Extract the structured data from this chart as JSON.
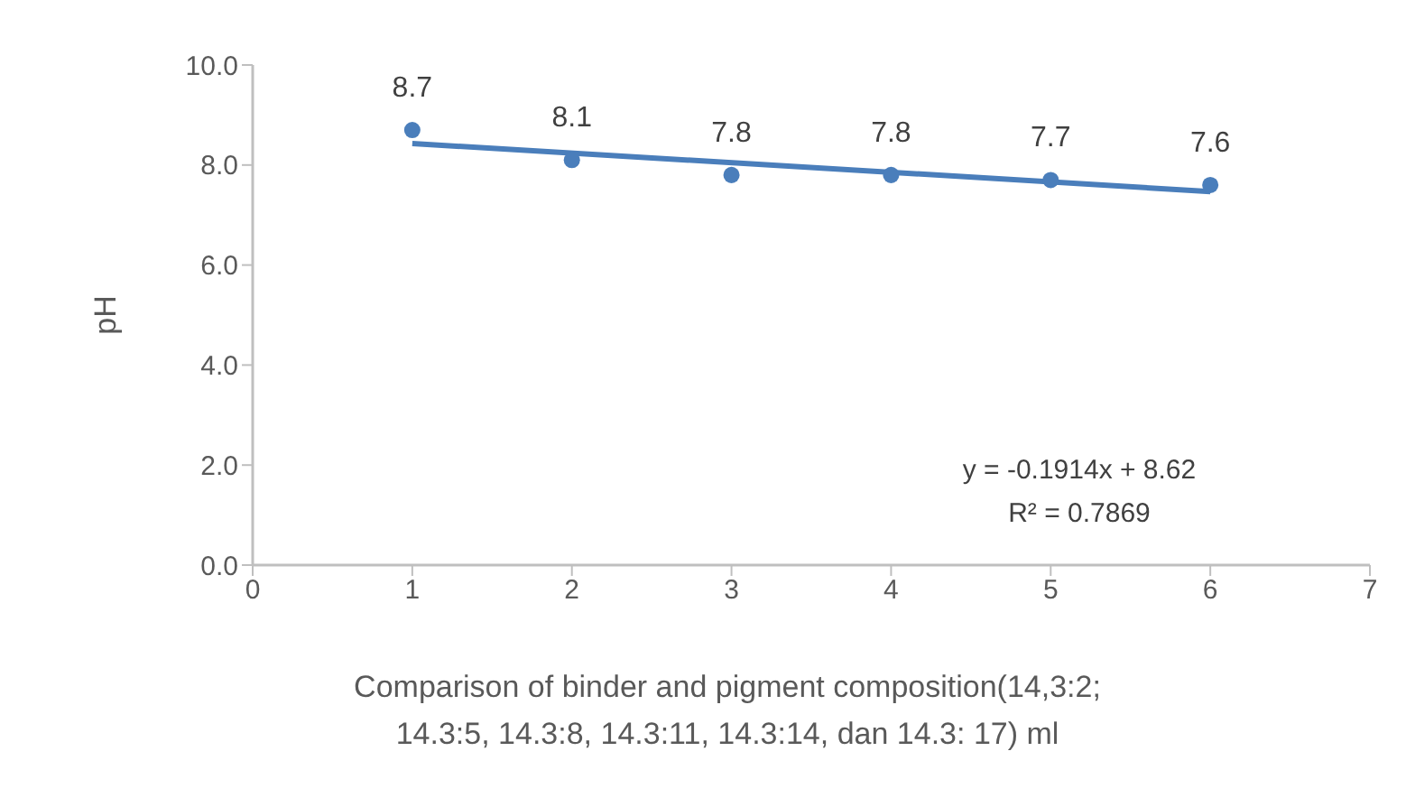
{
  "chart_data": {
    "type": "scatter",
    "ylabel": "pH",
    "xlabel": "Comparison of binder and pigment composition(14,3:2; 14.3:5, 14.3:8, 14.3:11, 14.3:14, dan 14.3: 17) ml",
    "x": [
      1,
      2,
      3,
      4,
      5,
      6
    ],
    "series": [
      {
        "color": "#4a7ebb",
        "marker": "circle",
        "values": [
          8.7,
          8.1,
          7.8,
          7.8,
          7.7,
          7.6
        ],
        "value_labels": [
          "8.7",
          "8.1",
          "7.8",
          "7.8",
          "7.7",
          "7.6"
        ]
      },
      {
        "type": "line",
        "color": "#4a7ebb",
        "marker": "none",
        "x": [
          1,
          6
        ],
        "values": [
          8.43,
          7.47
        ]
      }
    ],
    "line_style": "solid",
    "grid": false,
    "legend": false,
    "xlim": [
      0,
      7
    ],
    "xticks": [
      0,
      1,
      2,
      3,
      4,
      5,
      6,
      7
    ],
    "ylim": [
      0,
      10
    ],
    "yticks": [
      {
        "value": 0,
        "label": "0.0"
      },
      {
        "value": 2,
        "label": "2.0"
      },
      {
        "value": 4,
        "label": "4.0"
      },
      {
        "value": 6,
        "label": "6.0"
      },
      {
        "value": 8,
        "label": "8.0"
      },
      {
        "value": 10,
        "label": "10.0"
      }
    ],
    "annotations": [
      "y = -0.1914x + 8.62",
      "R² = 0.7869"
    ]
  }
}
